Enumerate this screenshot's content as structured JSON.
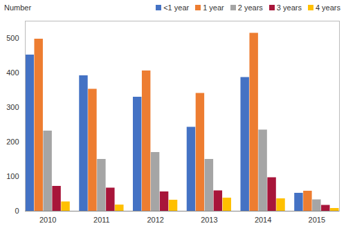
{
  "chart_data": {
    "type": "bar",
    "y_label": "Number",
    "categories": [
      "2010",
      "2011",
      "2012",
      "2013",
      "2014",
      "2015"
    ],
    "series": [
      {
        "name": "<1 year",
        "color": "#4472c4",
        "values": [
          452,
          392,
          330,
          243,
          387,
          52
        ]
      },
      {
        "name": "1 year",
        "color": "#ed7d31",
        "values": [
          498,
          353,
          406,
          341,
          515,
          58
        ]
      },
      {
        "name": "2 years",
        "color": "#a5a5a5",
        "values": [
          232,
          150,
          170,
          150,
          235,
          33
        ]
      },
      {
        "name": "3 years",
        "color": "#a8153a",
        "values": [
          72,
          67,
          56,
          59,
          97,
          17
        ]
      },
      {
        "name": "4 years",
        "color": "#ffc000",
        "values": [
          27,
          18,
          32,
          38,
          36,
          8
        ]
      }
    ],
    "ylim": [
      0,
      550
    ],
    "yticks": [
      0,
      100,
      200,
      300,
      400,
      500
    ],
    "grid": false,
    "legend": "top-right"
  }
}
